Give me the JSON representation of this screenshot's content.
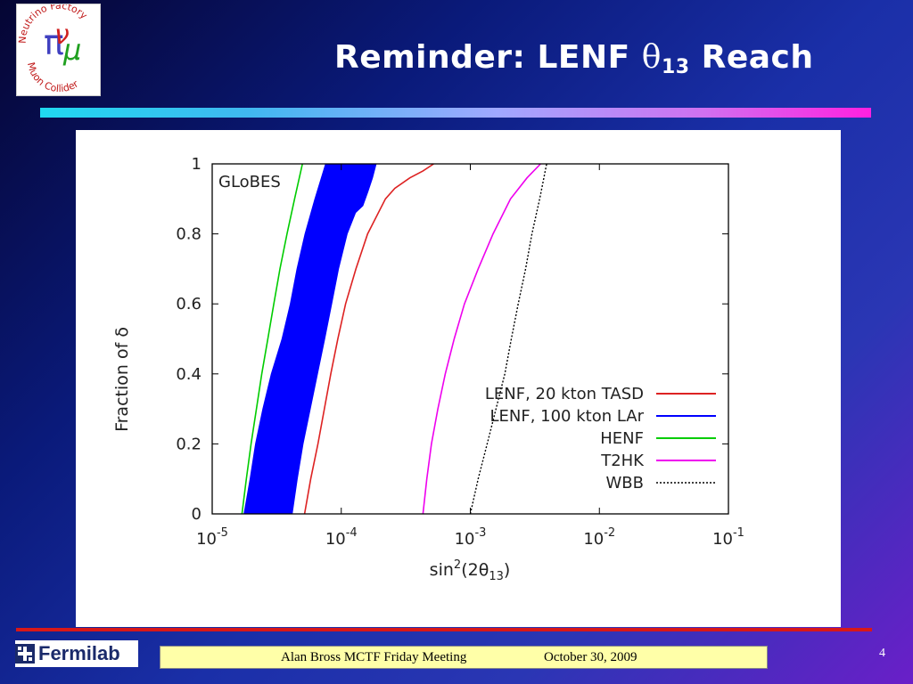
{
  "logo": {
    "top_text": "Neutrino Factory",
    "bottom_text": "Muon Collider",
    "glyph_nu": "ν",
    "glyph_pi": "π",
    "glyph_mu": "μ"
  },
  "title": {
    "prefix": "Reminder: LENF ",
    "symbol": "θ",
    "subscript": "13",
    "suffix": " Reach"
  },
  "colors": {
    "red": "#dd2222",
    "blue": "#0000ff",
    "green": "#00cc00",
    "magenta": "#ee00ee",
    "black": "#000000"
  },
  "chart_data": {
    "type": "area",
    "watermark": "GLoBES",
    "xlabel": "sin²(2θ₁₃)",
    "ylabel": "Fraction of δ",
    "x_scale": "log",
    "xlim": [
      1e-05,
      0.1
    ],
    "ylim": [
      0,
      1
    ],
    "x_ticks": [
      {
        "value": 1e-05,
        "base": "10",
        "exp": "-5"
      },
      {
        "value": 0.0001,
        "base": "10",
        "exp": "-4"
      },
      {
        "value": 0.001,
        "base": "10",
        "exp": "-3"
      },
      {
        "value": 0.01,
        "base": "10",
        "exp": "-2"
      },
      {
        "value": 0.1,
        "base": "10",
        "exp": "-1"
      }
    ],
    "y_ticks": [
      {
        "value": 0,
        "label": "0"
      },
      {
        "value": 0.2,
        "label": "0.2"
      },
      {
        "value": 0.4,
        "label": "0.4"
      },
      {
        "value": 0.6,
        "label": "0.6"
      },
      {
        "value": 0.8,
        "label": "0.8"
      },
      {
        "value": 1,
        "label": "1"
      }
    ],
    "legend_position": "bottom-right",
    "series": [
      {
        "name": "LENF, 20 kton TASD",
        "color": "#dd2222",
        "style": "solid",
        "points": [
          [
            5.2e-05,
            0
          ],
          [
            5.8e-05,
            0.1
          ],
          [
            6.6e-05,
            0.2
          ],
          [
            7.4e-05,
            0.3
          ],
          [
            8.3e-05,
            0.4
          ],
          [
            9.4e-05,
            0.5
          ],
          [
            0.000108,
            0.6
          ],
          [
            0.00013,
            0.7
          ],
          [
            0.00016,
            0.8
          ],
          [
            0.00022,
            0.9
          ],
          [
            0.00026,
            0.93
          ],
          [
            0.00034,
            0.96
          ],
          [
            0.00043,
            0.98
          ],
          [
            0.00052,
            1.0
          ]
        ]
      },
      {
        "name": "LENF, 100 kton LAr",
        "color": "#0000ff",
        "style": "band",
        "points_left": [
          [
            1.75e-05,
            0
          ],
          [
            1.95e-05,
            0.1
          ],
          [
            2.15e-05,
            0.2
          ],
          [
            2.45e-05,
            0.3
          ],
          [
            2.85e-05,
            0.4
          ],
          [
            3.45e-05,
            0.5
          ],
          [
            4e-05,
            0.6
          ],
          [
            4.5e-05,
            0.7
          ],
          [
            5.2e-05,
            0.8
          ],
          [
            6.2e-05,
            0.9
          ],
          [
            7.5e-05,
            1.0
          ]
        ],
        "points_right": [
          [
            4.2e-05,
            0
          ],
          [
            4.6e-05,
            0.1
          ],
          [
            5.1e-05,
            0.2
          ],
          [
            5.8e-05,
            0.3
          ],
          [
            6.6e-05,
            0.4
          ],
          [
            7.5e-05,
            0.5
          ],
          [
            8.5e-05,
            0.6
          ],
          [
            9.6e-05,
            0.7
          ],
          [
            0.000112,
            0.8
          ],
          [
            0.00013,
            0.86
          ],
          [
            0.000148,
            0.88
          ],
          [
            0.000162,
            0.92
          ],
          [
            0.000176,
            0.96
          ],
          [
            0.000188,
            1.0
          ]
        ]
      },
      {
        "name": "HENF",
        "color": "#00cc00",
        "style": "solid",
        "points": [
          [
            1.7e-05,
            0
          ],
          [
            1.84e-05,
            0.1
          ],
          [
            2e-05,
            0.2
          ],
          [
            2.2e-05,
            0.3
          ],
          [
            2.42e-05,
            0.4
          ],
          [
            2.7e-05,
            0.5
          ],
          [
            3e-05,
            0.6
          ],
          [
            3.35e-05,
            0.7
          ],
          [
            3.8e-05,
            0.8
          ],
          [
            4.35e-05,
            0.9
          ],
          [
            5e-05,
            1.0
          ]
        ]
      },
      {
        "name": "T2HK",
        "color": "#ee00ee",
        "style": "solid",
        "points": [
          [
            0.00043,
            0
          ],
          [
            0.00046,
            0.1
          ],
          [
            0.0005,
            0.2
          ],
          [
            0.00056,
            0.3
          ],
          [
            0.00064,
            0.4
          ],
          [
            0.00075,
            0.5
          ],
          [
            0.0009,
            0.6
          ],
          [
            0.00115,
            0.7
          ],
          [
            0.0015,
            0.8
          ],
          [
            0.00205,
            0.9
          ],
          [
            0.00275,
            0.96
          ],
          [
            0.0035,
            1.0
          ]
        ]
      },
      {
        "name": "WBB",
        "color": "#000000",
        "style": "dotted",
        "points": [
          [
            0.001,
            0
          ],
          [
            0.00115,
            0.1
          ],
          [
            0.00135,
            0.2
          ],
          [
            0.00158,
            0.3
          ],
          [
            0.00185,
            0.4
          ],
          [
            0.00208,
            0.5
          ],
          [
            0.00235,
            0.6
          ],
          [
            0.00268,
            0.7
          ],
          [
            0.003,
            0.8
          ],
          [
            0.00345,
            0.9
          ],
          [
            0.0039,
            1.0
          ]
        ]
      }
    ]
  },
  "footer": {
    "fermilab": "Fermilab",
    "author_meeting": "Alan Bross   MCTF Friday Meeting",
    "date": "October 30, 2009",
    "page_number": "4"
  }
}
